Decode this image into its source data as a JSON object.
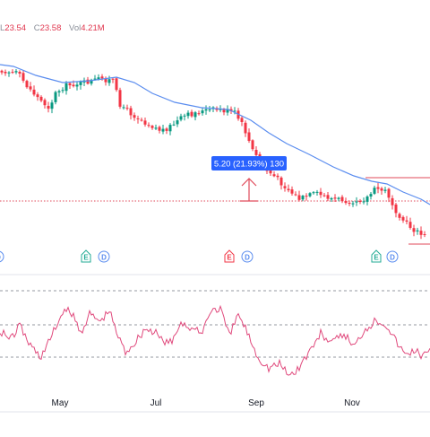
{
  "legend": {
    "low_key": "L",
    "low_value": "23.54",
    "close_key": "C",
    "close_value": "23.58",
    "vol_key": "Vol",
    "vol_value": "4.21M"
  },
  "measure": {
    "label": "5.20 (21.93%) 130"
  },
  "x_axis": [
    "May",
    "Jul",
    "Sep",
    "Nov"
  ],
  "event_markers": [
    {
      "kind": "E",
      "type": "earnings",
      "color": "#22ab94"
    },
    {
      "kind": "D",
      "type": "dividend",
      "color": "#2962ff"
    },
    {
      "kind": "E",
      "type": "earnings",
      "color": "#f23645"
    },
    {
      "kind": "D",
      "type": "dividend",
      "color": "#2962ff"
    },
    {
      "kind": "E",
      "type": "earnings",
      "color": "#22ab94"
    },
    {
      "kind": "D",
      "type": "dividend",
      "color": "#2962ff"
    }
  ],
  "colors": {
    "up": "#089981",
    "down": "#f23645",
    "ma": "#5b8def",
    "rsi": "#e0497c",
    "measure": "#2962ff",
    "level": "#e04a5a"
  },
  "chart_data": {
    "type": "candlestick",
    "series": [
      {
        "name": "",
        "type": "candlestick",
        "close_trend": [
          27.0,
          27.5,
          26.8,
          26.2,
          25.9,
          26.3,
          26.6,
          26.9,
          26.1,
          25.6,
          25.4,
          25.8,
          25.6,
          24.9,
          24.6,
          24.3,
          22.7,
          22.4,
          23.1,
          23.0,
          23.3,
          22.9,
          21.2,
          20.4,
          22.4,
          23.58
        ]
      },
      {
        "name": "",
        "type": "moving-average",
        "trend": [
          27.3,
          27.1,
          26.8,
          26.6,
          26.4,
          26.3,
          26.3,
          26.2,
          25.9,
          25.6,
          25.0,
          24.6,
          24.3,
          24.0,
          23.6,
          22.9,
          22.3
        ]
      }
    ],
    "oscillator": {
      "type": "line",
      "values": [
        55,
        62,
        48,
        44,
        38,
        66,
        72,
        58,
        60,
        42,
        38,
        68,
        60,
        40,
        34,
        64,
        72,
        56,
        30,
        24,
        38,
        58,
        56,
        42,
        48,
        44,
        38,
        40
      ]
    },
    "x_tick_labels": [
      "May",
      "Jul",
      "Sep",
      "Nov"
    ]
  }
}
